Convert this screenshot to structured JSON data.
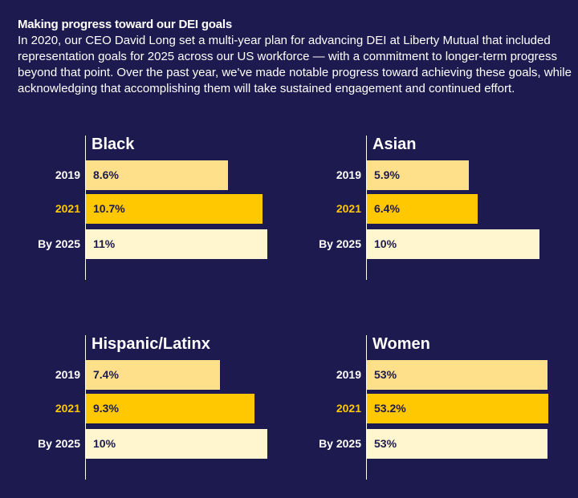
{
  "header": {
    "title": "Making progress toward our DEI goals",
    "intro": "In 2020, our CEO David Long set a multi-year plan for advancing DEI at Liberty Mutual that included representation goals for 2025 across our US workforce — with a commitment to longer-term progress beyond that point. Over the past year, we've made notable progress toward achieving these goals, while acknowledging that accomplishing them will take sustained engagement and continued effort."
  },
  "colors": {
    "background": "#1c1a4e",
    "bar_2019": "#ffe08a",
    "bar_2021": "#ffc800",
    "bar_2025": "#fff6cf",
    "highlight_label": "#ffc800"
  },
  "chart_data": [
    {
      "type": "bar",
      "title": "Black",
      "categories": [
        "2019",
        "2021",
        "By 2025"
      ],
      "values": [
        8.6,
        10.7,
        11
      ],
      "labels": [
        "8.6%",
        "10.7%",
        "11%"
      ],
      "unit": "%"
    },
    {
      "type": "bar",
      "title": "Asian",
      "categories": [
        "2019",
        "2021",
        "By 2025"
      ],
      "values": [
        5.9,
        6.4,
        10
      ],
      "labels": [
        "5.9%",
        "6.4%",
        "10%"
      ],
      "unit": "%"
    },
    {
      "type": "bar",
      "title": "Hispanic/Latinx",
      "categories": [
        "2019",
        "2021",
        "By 2025"
      ],
      "values": [
        7.4,
        9.3,
        10
      ],
      "labels": [
        "7.4%",
        "9.3%",
        "10%"
      ],
      "unit": "%"
    },
    {
      "type": "bar",
      "title": "Women",
      "categories": [
        "2019",
        "2021",
        "By 2025"
      ],
      "values": [
        53,
        53.2,
        53
      ],
      "labels": [
        "53%",
        "53.2%",
        "53%"
      ],
      "unit": "%"
    }
  ]
}
